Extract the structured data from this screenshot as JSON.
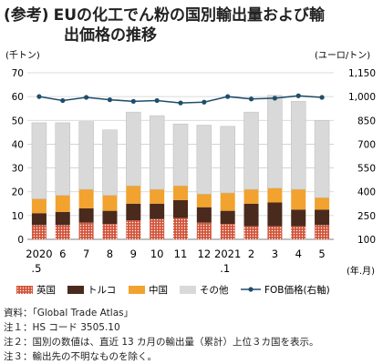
{
  "header": {
    "prefix": "(参考)",
    "title_line1": "EUの化工でん粉の国別輸出量および輸",
    "title_line2": "出価格の推移"
  },
  "chart_data": {
    "type": "bar",
    "stacked": true,
    "categories": [
      "2020.5",
      "6",
      "7",
      "8",
      "9",
      "10",
      "11",
      "12",
      "2021.1",
      "2",
      "3",
      "4",
      "5"
    ],
    "tick_top": [
      "2020",
      "6",
      "7",
      "8",
      "9",
      "10",
      "11",
      "12",
      "2021",
      "2",
      "3",
      "4",
      "5"
    ],
    "tick_bottom": [
      ".5",
      "",
      "",
      "",
      "",
      "",
      "",
      "",
      ".1",
      "",
      "",
      "",
      ""
    ],
    "series": [
      {
        "name": "英国",
        "color": "#d2553b",
        "values": [
          6,
          6,
          7,
          6.5,
          8,
          8.5,
          9,
          7,
          6.5,
          5.5,
          5.5,
          5.5,
          6
        ]
      },
      {
        "name": "トルコ",
        "color": "#4a2a1c",
        "values": [
          5,
          5.5,
          6,
          5.5,
          7,
          6.5,
          7.5,
          6.5,
          5.5,
          9.5,
          10,
          7,
          6.5
        ]
      },
      {
        "name": "中国",
        "color": "#f2a22e",
        "values": [
          6,
          7,
          8,
          6.5,
          7.5,
          6,
          6,
          5.5,
          7.5,
          6,
          6,
          8.5,
          5
        ]
      },
      {
        "name": "その他",
        "color": "#d9d9d9",
        "values": [
          32,
          30.5,
          28.5,
          27.5,
          31,
          31,
          26,
          29,
          28,
          32.5,
          39,
          37,
          32.5
        ]
      }
    ],
    "line": {
      "name": "FOB価格(右軸)",
      "color": "#1f4e6b",
      "values": [
        1000,
        975,
        995,
        980,
        970,
        975,
        960,
        965,
        1000,
        985,
        990,
        1005,
        995
      ]
    },
    "ylabel_left": "(千トン)",
    "ylabel_right": "(ユーロ/トン)",
    "xlabel": "(年.月)",
    "ylim_left": [
      0,
      70
    ],
    "yticks_left": [
      "0",
      "10",
      "20",
      "30",
      "40",
      "50",
      "60",
      "70"
    ],
    "ylim_right": [
      100,
      1150
    ],
    "yticks_right": [
      "100",
      "250",
      "400",
      "550",
      "700",
      "850",
      "1,000",
      "1,150"
    ],
    "grid": true
  },
  "notes": [
    "資料：「Global Trade Atlas」",
    "注１：HS コード 3505.10",
    "注２：国別の数値は、直近 13 カ月の輸出量（累計）上位３カ国を表示。",
    "注３：輸出先の不明なものを除く。"
  ]
}
